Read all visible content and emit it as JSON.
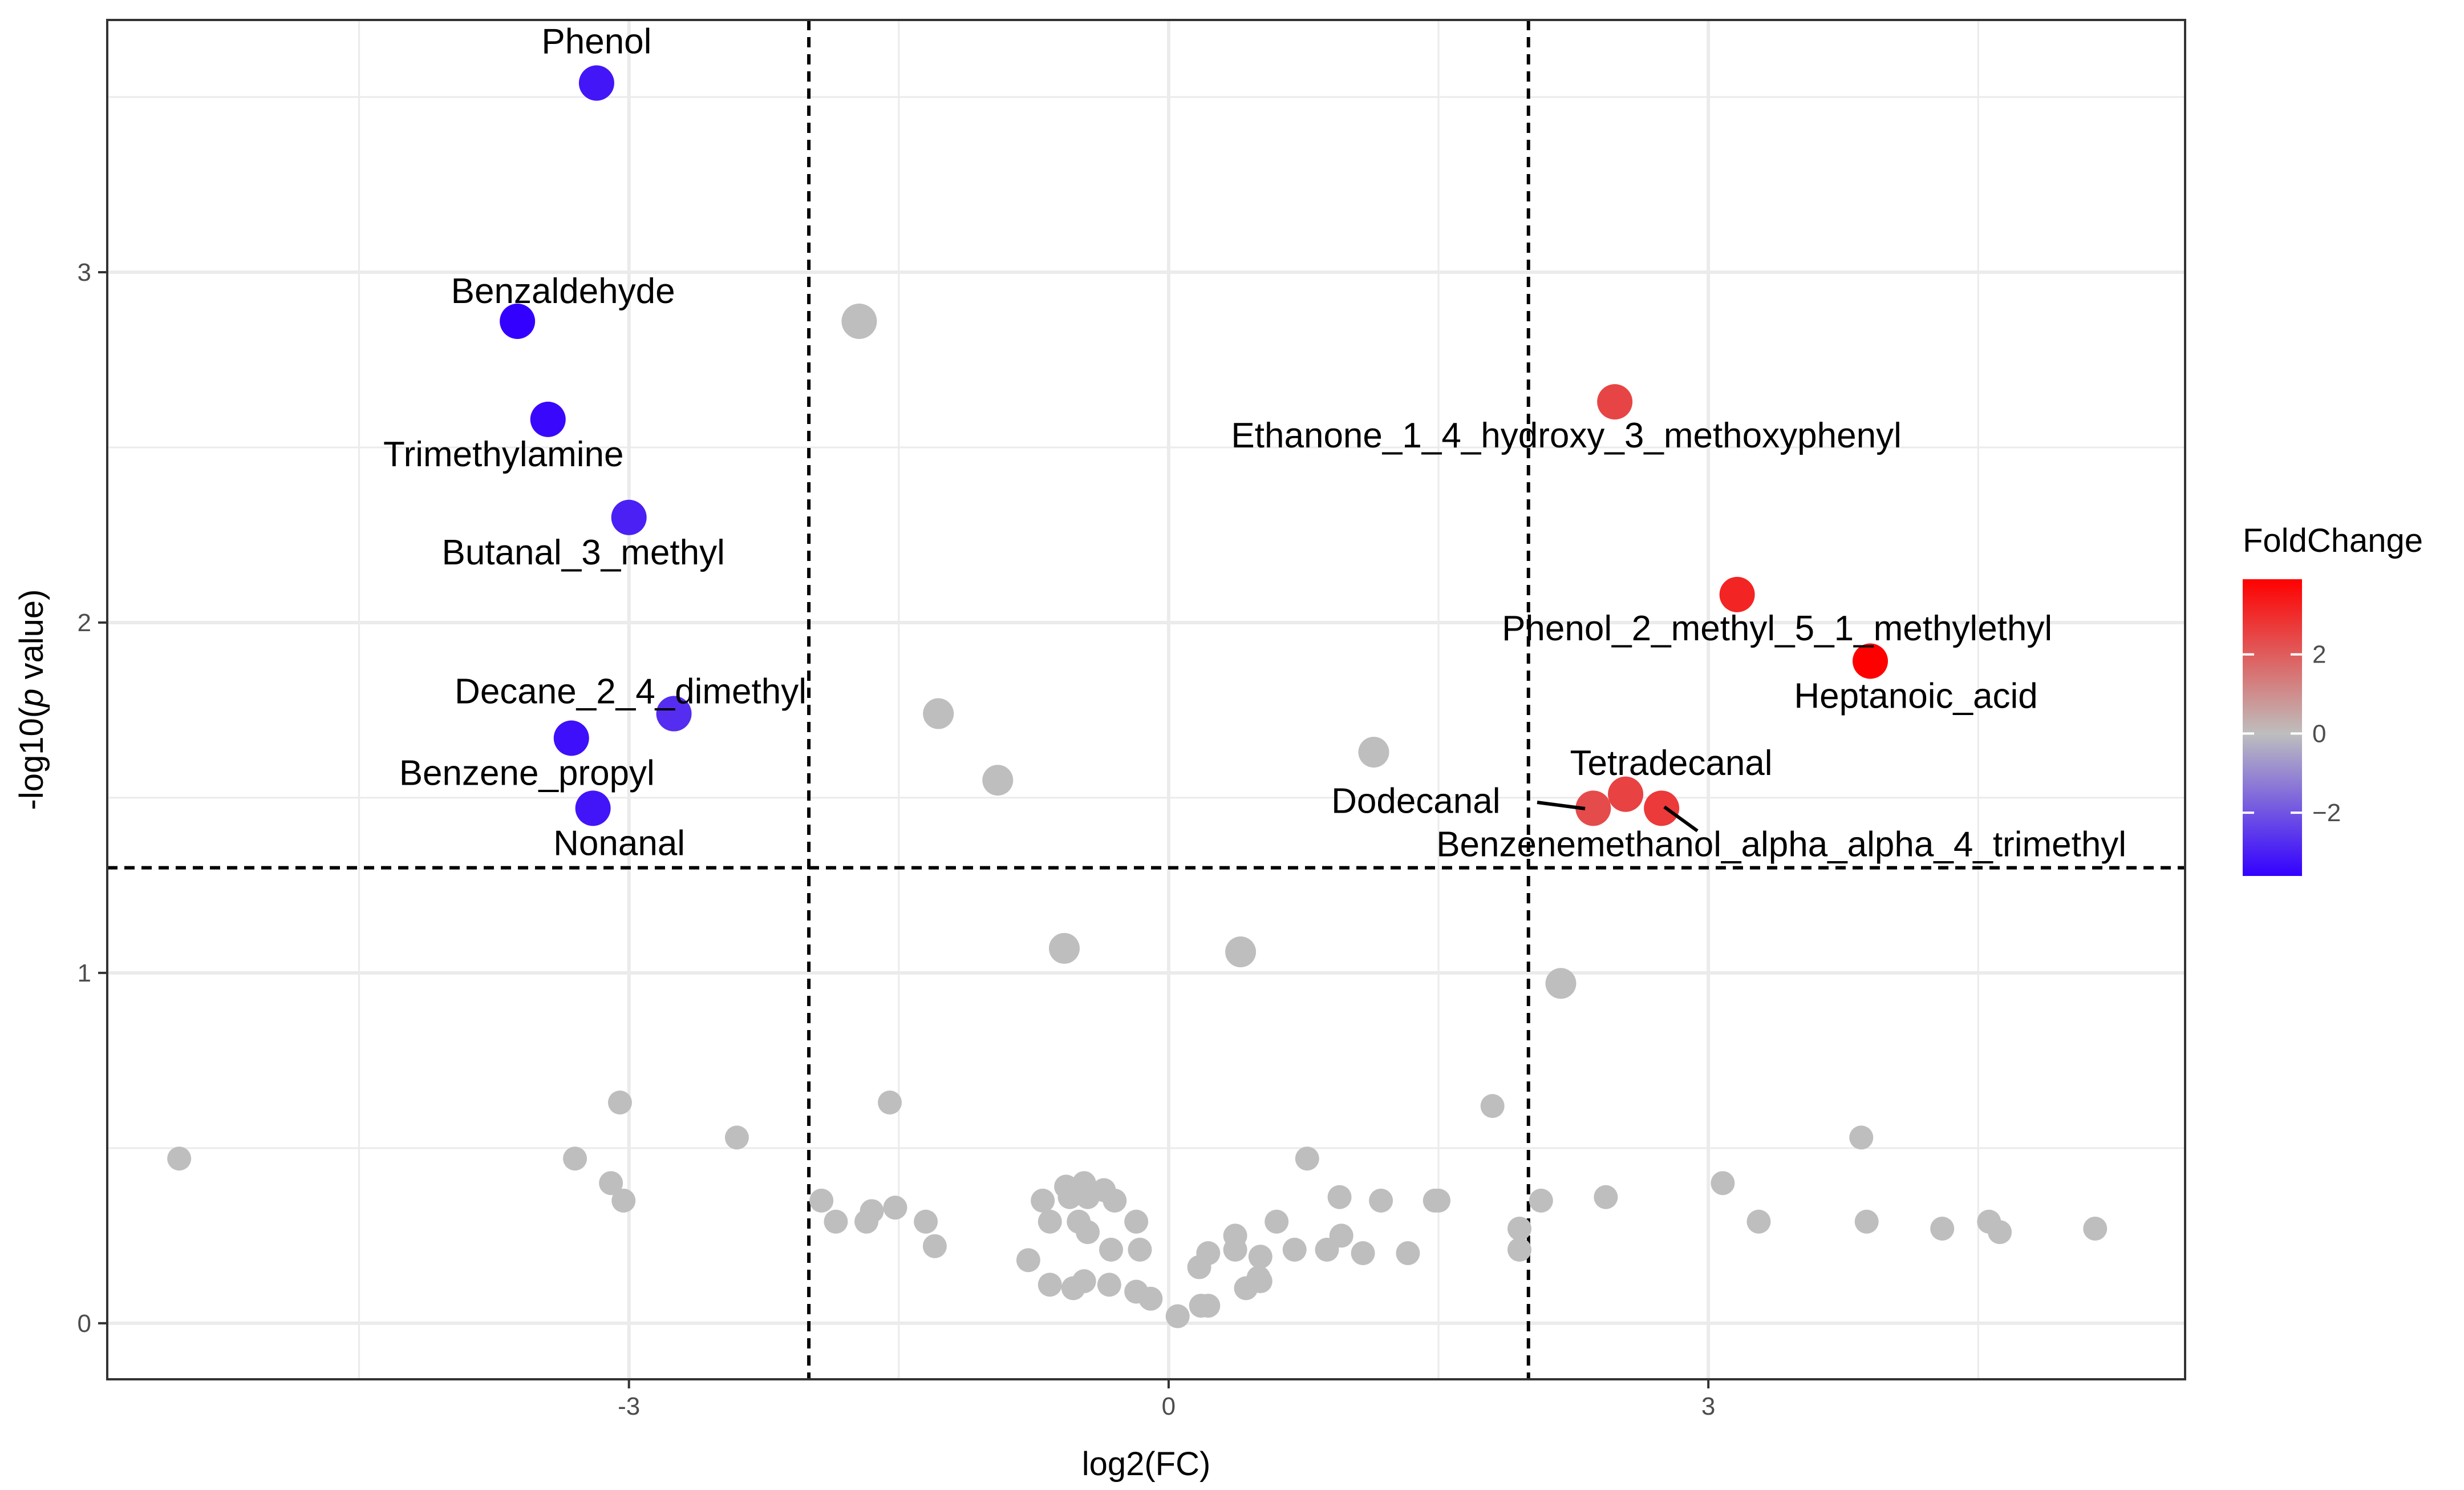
{
  "chart_data": {
    "type": "scatter",
    "title": "",
    "xlabel": "log2(FC)",
    "ylabel": "-log10(p value)",
    "ylabel_prefix": "-log10(",
    "ylabel_italic": "p",
    "ylabel_suffix": " value)",
    "xlim": [
      -5.9,
      5.65
    ],
    "ylim": [
      -0.16,
      3.72
    ],
    "x_ticks": [
      -3,
      0,
      3
    ],
    "x_tick_labels": [
      "-3",
      "0",
      "3"
    ],
    "y_ticks": [
      0,
      1,
      2,
      3
    ],
    "y_tick_labels": [
      "0",
      "1",
      "2",
      "3"
    ],
    "grid": true,
    "thresholds": {
      "fc": [
        -2,
        2
      ],
      "p": 1.3
    },
    "colors": {
      "low": "#3300ff",
      "mid": "#bebebe",
      "high": "#ff0000",
      "nonsig": "#bebebe"
    },
    "legend": {
      "title": "FoldChange",
      "position": "right",
      "range": [
        -3.6,
        3.9
      ],
      "breaks": [
        2,
        0,
        -2
      ],
      "break_labels": [
        "2",
        "0",
        "−2"
      ]
    },
    "significant_points": [
      {
        "name": "Phenol",
        "x": -3.18,
        "y": 3.54,
        "label": "Phenol"
      },
      {
        "name": "Benzaldehyde",
        "x": -3.62,
        "y": 2.86,
        "label": "Benzaldehyde"
      },
      {
        "name": "Trimethylamine",
        "x": -3.45,
        "y": 2.58,
        "label": "Trimethylamine"
      },
      {
        "name": "Butanal_3_methyl",
        "x": -3.0,
        "y": 2.3,
        "label": "Butanal_3_methyl"
      },
      {
        "name": "Decane_2_4_dimethyl",
        "x": -2.75,
        "y": 1.74,
        "label": "Decane_2_4_dimethyl"
      },
      {
        "name": "Benzene_propyl",
        "x": -3.32,
        "y": 1.67,
        "label": "Benzene_propyl"
      },
      {
        "name": "Nonanal",
        "x": -3.2,
        "y": 1.47,
        "label": "Nonanal"
      },
      {
        "name": "Ethanone_1_4_hydroxy_3_methoxyphenyl",
        "x": 2.48,
        "y": 2.63,
        "label": "Ethanone_1_4_hydroxy_3_methoxyphenyl"
      },
      {
        "name": "Phenol_2_methyl_5_1_methylethyl",
        "x": 3.16,
        "y": 2.08,
        "label": "Phenol_2_methyl_5_1_methylethyl"
      },
      {
        "name": "Heptanoic_acid",
        "x": 3.9,
        "y": 1.89,
        "label": "Heptanoic_acid"
      },
      {
        "name": "Tetradecanal",
        "x": 2.54,
        "y": 1.51,
        "label": "Tetradecanal"
      },
      {
        "name": "Dodecanal",
        "x": 2.36,
        "y": 1.47,
        "label": "Dodecanal"
      },
      {
        "name": "Benzenemethanol_alpha_alpha_4_trimethyl",
        "x": 2.74,
        "y": 1.47,
        "label": "Benzenemethanol_alpha_alpha_4_trimethyl"
      }
    ],
    "nonsignificant_points": [
      {
        "x": -1.72,
        "y": 2.86,
        "size": "large"
      },
      {
        "x": -1.28,
        "y": 1.74,
        "size": "medium"
      },
      {
        "x": -0.95,
        "y": 1.55,
        "size": "medium"
      },
      {
        "x": 1.14,
        "y": 1.63,
        "size": "medium"
      },
      {
        "x": -0.58,
        "y": 1.07,
        "size": "medium"
      },
      {
        "x": 0.4,
        "y": 1.06,
        "size": "medium"
      },
      {
        "x": 2.18,
        "y": 0.97,
        "size": "medium"
      },
      {
        "x": -5.5,
        "y": 0.47,
        "size": "small"
      },
      {
        "x": -3.3,
        "y": 0.47,
        "size": "small"
      },
      {
        "x": -3.05,
        "y": 0.63,
        "size": "small"
      },
      {
        "x": -3.1,
        "y": 0.4,
        "size": "small"
      },
      {
        "x": -3.03,
        "y": 0.35,
        "size": "small"
      },
      {
        "x": -2.4,
        "y": 0.53,
        "size": "small"
      },
      {
        "x": -1.55,
        "y": 0.63,
        "size": "small"
      },
      {
        "x": -1.93,
        "y": 0.35,
        "size": "small"
      },
      {
        "x": -1.85,
        "y": 0.29,
        "size": "small"
      },
      {
        "x": -1.68,
        "y": 0.29,
        "size": "small"
      },
      {
        "x": -1.65,
        "y": 0.32,
        "size": "small"
      },
      {
        "x": -1.52,
        "y": 0.33,
        "size": "small"
      },
      {
        "x": -1.35,
        "y": 0.29,
        "size": "small"
      },
      {
        "x": -1.3,
        "y": 0.22,
        "size": "small"
      },
      {
        "x": -0.78,
        "y": 0.18,
        "size": "small"
      },
      {
        "x": -0.7,
        "y": 0.35,
        "size": "small"
      },
      {
        "x": -0.66,
        "y": 0.29,
        "size": "small"
      },
      {
        "x": -0.66,
        "y": 0.11,
        "size": "small"
      },
      {
        "x": -0.57,
        "y": 0.39,
        "size": "small"
      },
      {
        "x": -0.55,
        "y": 0.36,
        "size": "small"
      },
      {
        "x": -0.53,
        "y": 0.1,
        "size": "small"
      },
      {
        "x": -0.5,
        "y": 0.29,
        "size": "small"
      },
      {
        "x": -0.47,
        "y": 0.4,
        "size": "small"
      },
      {
        "x": -0.47,
        "y": 0.12,
        "size": "small"
      },
      {
        "x": -0.45,
        "y": 0.36,
        "size": "small"
      },
      {
        "x": -0.45,
        "y": 0.26,
        "size": "small"
      },
      {
        "x": -0.36,
        "y": 0.38,
        "size": "small"
      },
      {
        "x": -0.33,
        "y": 0.11,
        "size": "small"
      },
      {
        "x": -0.32,
        "y": 0.21,
        "size": "small"
      },
      {
        "x": -0.3,
        "y": 0.35,
        "size": "small"
      },
      {
        "x": -0.18,
        "y": 0.29,
        "size": "small"
      },
      {
        "x": -0.18,
        "y": 0.09,
        "size": "small"
      },
      {
        "x": -0.16,
        "y": 0.21,
        "size": "small"
      },
      {
        "x": -0.1,
        "y": 0.07,
        "size": "small"
      },
      {
        "x": 0.05,
        "y": 0.02,
        "size": "small"
      },
      {
        "x": 0.17,
        "y": 0.16,
        "size": "small"
      },
      {
        "x": 0.18,
        "y": 0.05,
        "size": "small"
      },
      {
        "x": 0.22,
        "y": 0.2,
        "size": "small"
      },
      {
        "x": 0.22,
        "y": 0.05,
        "size": "small"
      },
      {
        "x": 0.37,
        "y": 0.25,
        "size": "small"
      },
      {
        "x": 0.37,
        "y": 0.21,
        "size": "small"
      },
      {
        "x": 0.43,
        "y": 0.1,
        "size": "small"
      },
      {
        "x": 0.5,
        "y": 0.13,
        "size": "small"
      },
      {
        "x": 0.51,
        "y": 0.19,
        "size": "small"
      },
      {
        "x": 0.51,
        "y": 0.12,
        "size": "small"
      },
      {
        "x": 0.6,
        "y": 0.29,
        "size": "small"
      },
      {
        "x": 0.7,
        "y": 0.21,
        "size": "small"
      },
      {
        "x": 0.77,
        "y": 0.47,
        "size": "small"
      },
      {
        "x": 0.88,
        "y": 0.21,
        "size": "small"
      },
      {
        "x": 0.95,
        "y": 0.36,
        "size": "small"
      },
      {
        "x": 0.96,
        "y": 0.25,
        "size": "small"
      },
      {
        "x": 1.08,
        "y": 0.2,
        "size": "small"
      },
      {
        "x": 1.18,
        "y": 0.35,
        "size": "small"
      },
      {
        "x": 1.33,
        "y": 0.2,
        "size": "small"
      },
      {
        "x": 1.48,
        "y": 0.35,
        "size": "small"
      },
      {
        "x": 1.5,
        "y": 0.35,
        "size": "small"
      },
      {
        "x": 1.8,
        "y": 0.62,
        "size": "small"
      },
      {
        "x": 1.95,
        "y": 0.27,
        "size": "small"
      },
      {
        "x": 1.95,
        "y": 0.21,
        "size": "small"
      },
      {
        "x": 2.07,
        "y": 0.35,
        "size": "small"
      },
      {
        "x": 2.43,
        "y": 0.36,
        "size": "small"
      },
      {
        "x": 3.08,
        "y": 0.4,
        "size": "small"
      },
      {
        "x": 3.28,
        "y": 0.29,
        "size": "small"
      },
      {
        "x": 3.85,
        "y": 0.53,
        "size": "small"
      },
      {
        "x": 3.88,
        "y": 0.29,
        "size": "small"
      },
      {
        "x": 4.3,
        "y": 0.27,
        "size": "small"
      },
      {
        "x": 4.56,
        "y": 0.29,
        "size": "small"
      },
      {
        "x": 4.62,
        "y": 0.26,
        "size": "small"
      },
      {
        "x": 5.15,
        "y": 0.27,
        "size": "small"
      }
    ]
  }
}
